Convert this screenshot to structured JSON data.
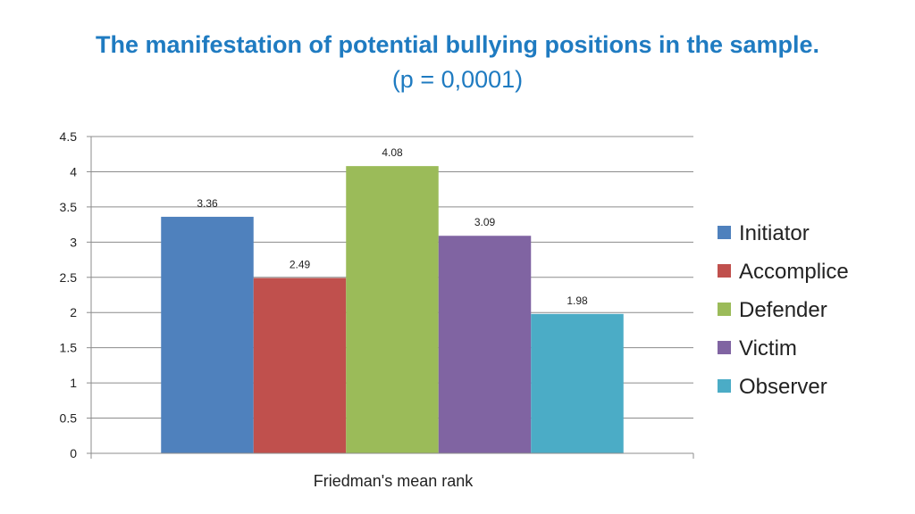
{
  "chart_data": {
    "type": "bar",
    "title": "The manifestation of potential bullying positions in the sample.",
    "subtitle": "(p = 0,0001)",
    "categories": [
      "Friedman's mean rank"
    ],
    "xlabel": "Friedman's mean rank",
    "ylabel": "",
    "ylim": [
      0,
      4.5
    ],
    "yticks": [
      0,
      0.5,
      1,
      1.5,
      2,
      2.5,
      3,
      3.5,
      4,
      4.5
    ],
    "ytick_labels": [
      "0",
      "0.5",
      "1",
      "1.5",
      "2",
      "2.5",
      "3",
      "3.5",
      "4",
      "4.5"
    ],
    "grid": true,
    "legend_position": "right",
    "series": [
      {
        "name": "Initiator",
        "values": [
          3.36
        ],
        "label": "3.36",
        "color": "#4f81bd"
      },
      {
        "name": "Accomplice",
        "values": [
          2.49
        ],
        "label": "2.49",
        "color": "#c0504d"
      },
      {
        "name": "Defender",
        "values": [
          4.08
        ],
        "label": "4.08",
        "color": "#9bbb59"
      },
      {
        "name": "Victim",
        "values": [
          3.09
        ],
        "label": "3.09",
        "color": "#8064a2"
      },
      {
        "name": "Observer",
        "values": [
          1.98
        ],
        "label": "1.98",
        "color": "#4bacc6"
      }
    ]
  }
}
